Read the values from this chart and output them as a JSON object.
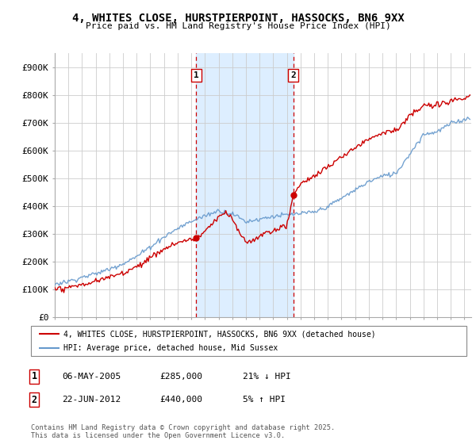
{
  "title": "4, WHITES CLOSE, HURSTPIERPOINT, HASSOCKS, BN6 9XX",
  "subtitle": "Price paid vs. HM Land Registry's House Price Index (HPI)",
  "ylabel_ticks": [
    "£0",
    "£100K",
    "£200K",
    "£300K",
    "£400K",
    "£500K",
    "£600K",
    "£700K",
    "£800K",
    "£900K"
  ],
  "ytick_values": [
    0,
    100000,
    200000,
    300000,
    400000,
    500000,
    600000,
    700000,
    800000,
    900000
  ],
  "ylim": [
    0,
    950000
  ],
  "xlim_start": 1995.0,
  "xlim_end": 2025.5,
  "color_red": "#cc0000",
  "color_blue": "#6699cc",
  "color_shaded": "#ddeeff",
  "marker1_x": 2005.35,
  "marker1_y": 285000,
  "marker2_x": 2012.47,
  "marker2_y": 440000,
  "vline1_x": 2005.35,
  "vline2_x": 2012.47,
  "legend_label_red": "4, WHITES CLOSE, HURSTPIERPOINT, HASSOCKS, BN6 9XX (detached house)",
  "legend_label_blue": "HPI: Average price, detached house, Mid Sussex",
  "table_row1": [
    "1",
    "06-MAY-2005",
    "£285,000",
    "21% ↓ HPI"
  ],
  "table_row2": [
    "2",
    "22-JUN-2012",
    "£440,000",
    "5% ↑ HPI"
  ],
  "footer": "Contains HM Land Registry data © Crown copyright and database right 2025.\nThis data is licensed under the Open Government Licence v3.0.",
  "background_color": "#ffffff",
  "grid_color": "#cccccc"
}
